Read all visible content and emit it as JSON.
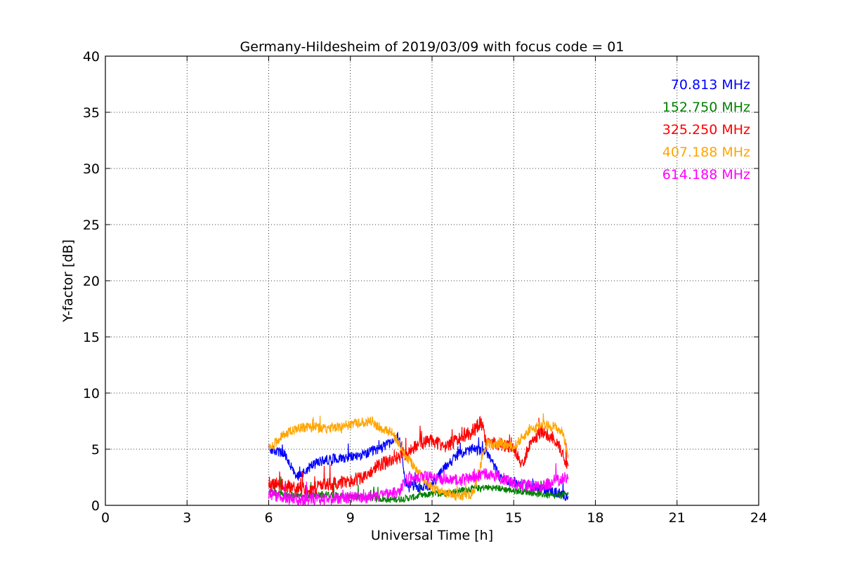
{
  "chart_data": {
    "type": "line",
    "title": "Germany-Hildesheim of 2019/03/09 with focus code = 01",
    "xlabel": "Universal Time [h]",
    "ylabel": "Y-factor [dB]",
    "xlim": [
      0,
      24
    ],
    "ylim": [
      0,
      40
    ],
    "xticks": [
      0,
      3,
      6,
      9,
      12,
      15,
      18,
      21,
      24
    ],
    "yticks": [
      0,
      5,
      10,
      15,
      20,
      25,
      30,
      35,
      40
    ],
    "grid": true,
    "legend_position": "top-right",
    "series": [
      {
        "name": "70.813 MHz",
        "color": "#0000ff",
        "x": [
          6.0,
          6.3,
          6.6,
          6.8,
          7.0,
          7.3,
          7.6,
          8.0,
          8.5,
          9.0,
          9.5,
          10.0,
          10.5,
          10.8,
          11.0,
          11.5,
          12.0,
          12.5,
          13.0,
          13.5,
          14.0,
          14.5,
          15.0,
          15.5,
          16.0,
          16.5,
          17.0
        ],
        "y": [
          5.0,
          4.8,
          4.5,
          3.5,
          2.5,
          3.0,
          3.6,
          4.0,
          4.2,
          4.3,
          4.5,
          5.0,
          5.6,
          6.2,
          2.0,
          1.6,
          1.8,
          3.5,
          4.6,
          5.0,
          4.8,
          2.5,
          2.0,
          1.8,
          1.5,
          1.2,
          0.8
        ]
      },
      {
        "name": "152.750 MHz",
        "color": "#008000",
        "x": [
          6.0,
          6.5,
          7.0,
          7.5,
          8.0,
          8.5,
          9.0,
          9.5,
          10.0,
          10.5,
          11.0,
          11.5,
          12.0,
          12.5,
          13.0,
          13.5,
          14.0,
          14.5,
          15.0,
          15.5,
          16.0,
          16.5,
          17.0
        ],
        "y": [
          1.2,
          1.0,
          0.8,
          0.9,
          1.0,
          0.9,
          0.8,
          0.7,
          0.6,
          0.5,
          0.6,
          0.8,
          1.0,
          1.1,
          1.3,
          1.5,
          1.6,
          1.5,
          1.3,
          1.2,
          1.0,
          0.8,
          1.0
        ]
      },
      {
        "name": "325.250 MHz",
        "color": "#ff0000",
        "x": [
          6.0,
          6.5,
          7.0,
          7.5,
          8.0,
          8.5,
          9.0,
          9.5,
          10.0,
          10.5,
          11.0,
          11.5,
          12.0,
          12.5,
          13.0,
          13.5,
          13.8,
          14.0,
          14.5,
          15.0,
          15.3,
          15.6,
          16.0,
          16.5,
          17.0
        ],
        "y": [
          2.0,
          1.8,
          1.5,
          1.4,
          1.8,
          2.0,
          2.2,
          2.5,
          3.5,
          4.0,
          4.5,
          5.5,
          5.8,
          5.2,
          6.0,
          6.5,
          7.5,
          5.5,
          5.5,
          5.0,
          3.5,
          5.5,
          6.5,
          6.0,
          3.5
        ]
      },
      {
        "name": "407.188 MHz",
        "color": "#ffa500",
        "x": [
          6.0,
          6.2,
          6.5,
          7.0,
          7.5,
          8.0,
          8.5,
          9.0,
          9.5,
          9.8,
          10.0,
          10.5,
          10.8,
          11.0,
          11.5,
          12.0,
          12.5,
          13.0,
          13.5,
          14.0,
          14.5,
          15.0,
          15.5,
          16.0,
          16.5,
          16.8,
          17.0
        ],
        "y": [
          5.0,
          5.5,
          6.2,
          6.8,
          7.0,
          6.8,
          7.0,
          7.2,
          7.4,
          7.5,
          7.0,
          6.5,
          5.5,
          4.5,
          3.0,
          1.5,
          1.0,
          0.8,
          1.0,
          5.5,
          5.5,
          5.2,
          6.5,
          7.2,
          7.0,
          6.5,
          4.5
        ]
      },
      {
        "name": "614.188 MHz",
        "color": "#ff00ff",
        "x": [
          6.0,
          6.5,
          7.0,
          7.5,
          8.0,
          8.5,
          9.0,
          9.5,
          10.0,
          10.5,
          10.8,
          11.0,
          11.5,
          12.0,
          12.5,
          13.0,
          13.5,
          14.0,
          14.5,
          15.0,
          15.5,
          16.0,
          16.5,
          17.0
        ],
        "y": [
          1.0,
          0.7,
          0.5,
          0.5,
          0.6,
          0.6,
          0.7,
          0.7,
          0.8,
          1.0,
          1.2,
          2.2,
          2.5,
          2.5,
          2.3,
          2.2,
          2.5,
          2.8,
          2.5,
          2.0,
          1.8,
          1.6,
          2.2,
          2.5
        ]
      }
    ]
  }
}
